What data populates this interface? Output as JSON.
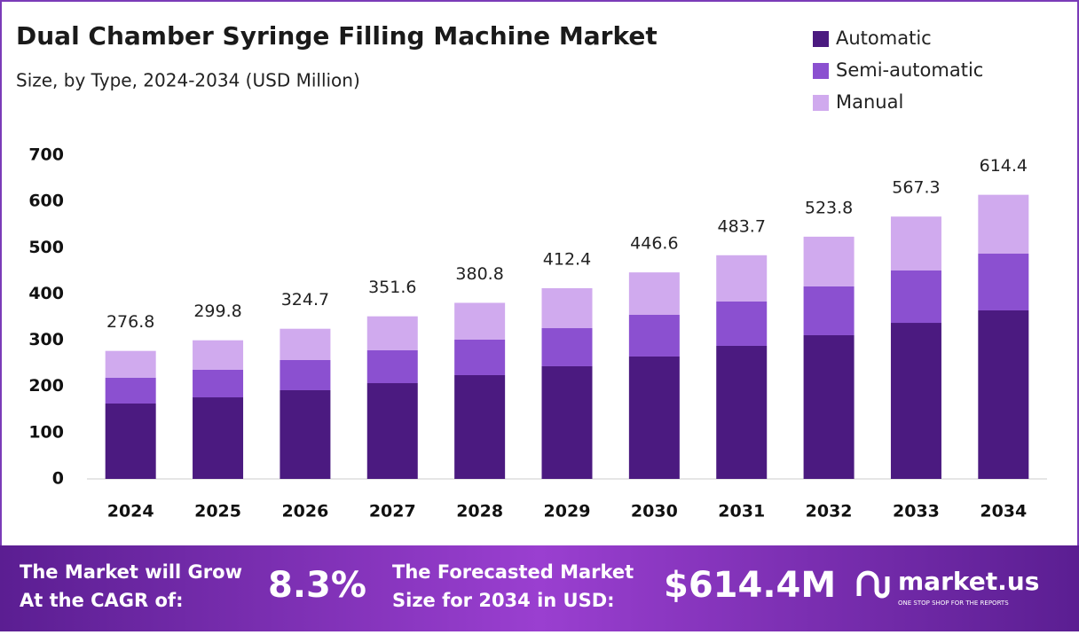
{
  "chart_data": {
    "type": "stacked_bar",
    "title": "Dual Chamber Syringe Filling Machine Market",
    "subtitle": "Size, by Type, 2024-2034 (USD Million)",
    "categories": [
      "2024",
      "2025",
      "2026",
      "2027",
      "2028",
      "2029",
      "2030",
      "2031",
      "2032",
      "2033",
      "2034"
    ],
    "series": [
      {
        "name": "Automatic",
        "color": "#4b1a80",
        "values": [
          163,
          176.4,
          191.8,
          207.1,
          224.4,
          243.6,
          264.7,
          287.7,
          310.7,
          337.5,
          364.4
        ]
      },
      {
        "name": "Semi-automatic",
        "color": "#8b50d0",
        "values": [
          56,
          59.5,
          65.2,
          71,
          76.7,
          82.4,
          90.1,
          95.9,
          105.5,
          113.2,
          122.7
        ]
      },
      {
        "name": "Manual",
        "color": "#d0aaee",
        "values": [
          57.8,
          63.9,
          67.7,
          73.5,
          79.7,
          86.4,
          91.8,
          100.1,
          107.6,
          116.6,
          127.3
        ]
      }
    ],
    "totals": [
      276.8,
      299.8,
      324.7,
      351.6,
      380.8,
      412.4,
      446.6,
      483.7,
      523.8,
      567.3,
      614.4
    ],
    "ylim": [
      0,
      700
    ],
    "yticks": [
      0,
      100,
      200,
      300,
      400,
      500,
      600,
      700
    ],
    "grid": false,
    "legend": "top-right"
  },
  "footer": {
    "cagr_label": [
      "The Market will Grow",
      "At the CAGR of:"
    ],
    "cagr_value": "8.3%",
    "forecast_label": [
      "The Forecasted Market",
      "Size for 2034 in USD:"
    ],
    "forecast_value": "$614.4M",
    "logo": "market.us",
    "tagline": "ONE STOP SHOP FOR THE REPORTS"
  }
}
